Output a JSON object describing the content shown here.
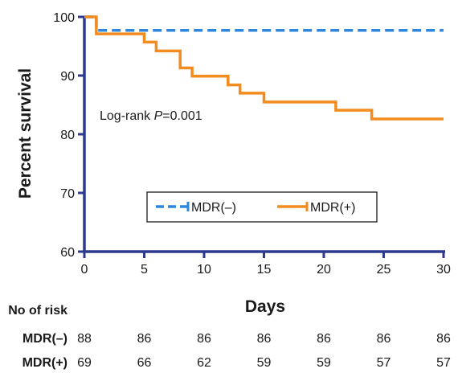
{
  "chart_data": {
    "type": "line",
    "xlabel": "Days",
    "ylabel": "Percent survival",
    "xlim": [
      0,
      30
    ],
    "ylim": [
      60,
      100
    ],
    "xticks": [
      0,
      5,
      10,
      15,
      20,
      25,
      30
    ],
    "yticks": [
      60,
      70,
      80,
      90,
      100
    ],
    "annotation": {
      "prefix": "Log-rank ",
      "italic": "P",
      "suffix": "=0.001"
    },
    "legend_position": "lower-center",
    "series": [
      {
        "name": "MDR(–)",
        "color": "#2e86de",
        "style": "dashed",
        "steps": [
          [
            0,
            100
          ],
          [
            1,
            97.7
          ],
          [
            30,
            97.7
          ]
        ]
      },
      {
        "name": "MDR(+)",
        "color": "#f28c1e",
        "style": "solid",
        "steps": [
          [
            0,
            100
          ],
          [
            1,
            97.1
          ],
          [
            5,
            95.7
          ],
          [
            6,
            94.2
          ],
          [
            8,
            91.3
          ],
          [
            9,
            89.9
          ],
          [
            12,
            88.4
          ],
          [
            13,
            87.0
          ],
          [
            15,
            85.5
          ],
          [
            21,
            84.1
          ],
          [
            24,
            82.6
          ],
          [
            30,
            82.6
          ]
        ]
      }
    ],
    "risk_table": {
      "title": "No of risk",
      "days": [
        0,
        5,
        10,
        15,
        20,
        25,
        30
      ],
      "rows": [
        {
          "name": "MDR(–)",
          "values": [
            88,
            86,
            86,
            86,
            86,
            86,
            86
          ]
        },
        {
          "name": "MDR(+)",
          "values": [
            69,
            66,
            62,
            59,
            59,
            57,
            57
          ]
        }
      ]
    }
  }
}
